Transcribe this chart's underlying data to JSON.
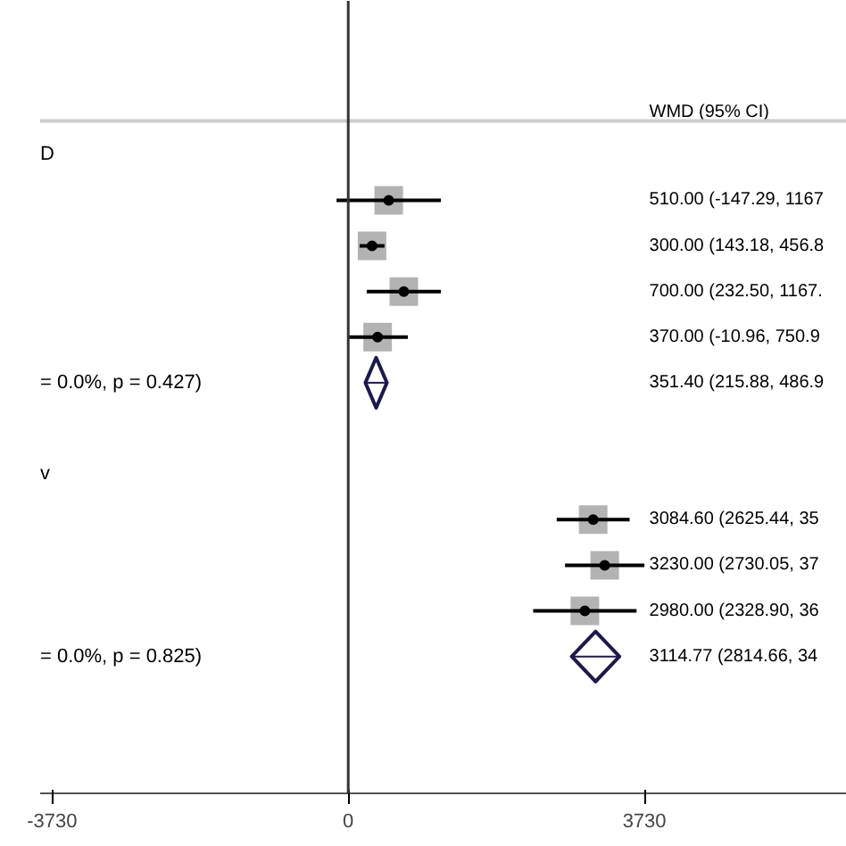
{
  "chart_data": {
    "type": "scatter",
    "orientation": "horizontal",
    "categories": [
      "D",
      null,
      null,
      null,
      null,
      "= 0.0%, p = 0.427)",
      null,
      "v",
      null,
      null,
      null,
      "= 0.0%, p = 0.825)"
    ],
    "annotations": [
      "WMD (95% CI)",
      "510.00 (-147.29, 1167",
      "300.00 (143.18, 456.8",
      "700.00 (232.50, 1167.",
      "370.00 (-10.96, 750.9",
      "351.40 (215.88, 486.9",
      "3084.60 (2625.44, 35",
      "3230.00 (2730.05, 37",
      "2980.00 (2328.90, 36",
      "3114.77 (2814.66, 34"
    ],
    "xlim": [
      -3880,
      6280
    ],
    "xticks": [
      -3730,
      0,
      3730
    ],
    "grid": false,
    "ref_lines": [
      {
        "axis": "x",
        "value": 0,
        "color": "#333333"
      }
    ],
    "series": [
      {
        "marker": "square",
        "color": "#b3b3b3",
        "values": [
          null,
          510,
          300,
          700,
          370,
          null,
          null,
          null,
          3084.6,
          3230,
          2980,
          null
        ],
        "errors": [
          null,
          [
            -147.29,
            1167.29
          ],
          [
            143.18,
            456.82
          ],
          [
            232.5,
            1167.5
          ],
          [
            -10.96,
            750.96
          ],
          null,
          null,
          null,
          [
            2625.44,
            3543.76
          ],
          [
            2730.05,
            3729.95
          ],
          [
            2328.9,
            3631.1
          ],
          null
        ]
      },
      {
        "marker": "diamond",
        "color": "#1a1a4e",
        "values": [
          null,
          null,
          null,
          null,
          null,
          351.4,
          null,
          null,
          null,
          null,
          null,
          3114.77
        ],
        "errors": [
          null,
          null,
          null,
          null,
          null,
          [
            215.88,
            486.92
          ],
          null,
          null,
          null,
          null,
          null,
          [
            2814.66,
            3414.88
          ]
        ]
      }
    ]
  }
}
